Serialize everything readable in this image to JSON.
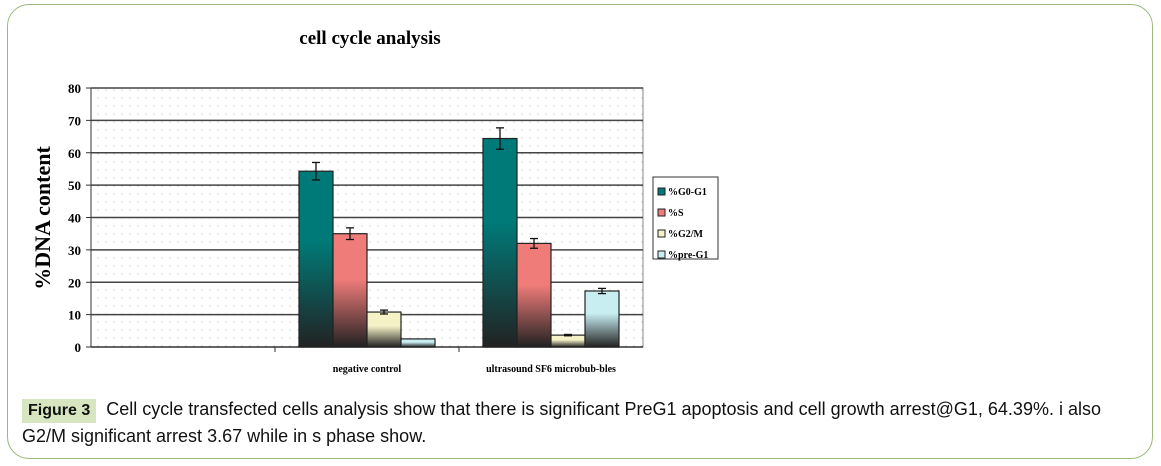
{
  "chart_data": {
    "type": "bar",
    "title": "cell cycle analysis",
    "xlabel": "",
    "ylabel": "%DNA content",
    "ylim": [
      0,
      80
    ],
    "yticks": [
      "0",
      "10",
      "20",
      "30",
      "40",
      "50",
      "60",
      "70",
      "80"
    ],
    "categories": [
      "",
      "negative control",
      "ultrasound SF6 microbub-bles"
    ],
    "series": [
      {
        "name": "%G0-G1",
        "color": "#007a78",
        "values": [
          null,
          54.3,
          64.39
        ],
        "errors": [
          null,
          2.7,
          3.3
        ]
      },
      {
        "name": "%S",
        "color": "#f07c7a",
        "values": [
          null,
          35.0,
          32.0
        ],
        "errors": [
          null,
          1.8,
          1.5
        ]
      },
      {
        "name": "%G2/M",
        "color": "#f5f2c8",
        "values": [
          null,
          10.8,
          3.67
        ],
        "errors": [
          null,
          0.6,
          0.2
        ]
      },
      {
        "name": "%pre-G1",
        "color": "#c8eef2",
        "values": [
          null,
          2.5,
          17.3
        ],
        "errors": [
          null,
          0,
          0.8
        ]
      }
    ],
    "grid": true,
    "legend": "right"
  },
  "caption": {
    "label": "Figure 3",
    "text": "Cell cycle transfected cells analysis show that there is significant PreG1 apoptosis and cell growth arrest@G1, 64.39%. i also G2/M significant arrest 3.67 while in s phase show."
  }
}
